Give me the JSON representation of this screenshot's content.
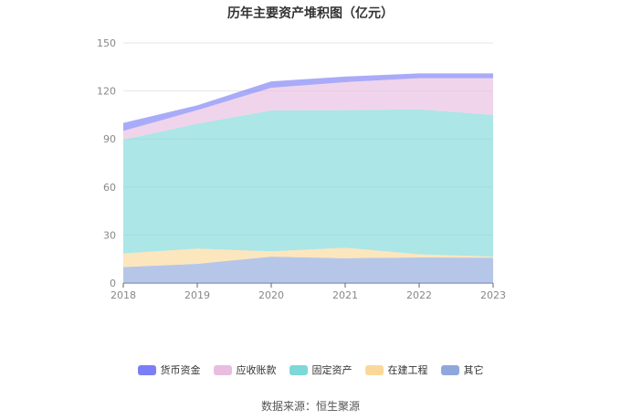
{
  "source_text": "数据来源：恒生聚源",
  "chart_data": {
    "type": "area",
    "stacked": true,
    "title": "历年主要资产堆积图（亿元）",
    "categories": [
      "2018",
      "2019",
      "2020",
      "2021",
      "2022",
      "2023"
    ],
    "ylim": [
      0,
      150
    ],
    "yticks": [
      0,
      30,
      60,
      90,
      120,
      150
    ],
    "grid": true,
    "legend_position": "bottom",
    "series": [
      {
        "name": "其它",
        "color": "#8fa8dc",
        "values": [
          10,
          12,
          16.5,
          15.5,
          16,
          15.8
        ]
      },
      {
        "name": "在建工程",
        "color": "#fbd89a",
        "values": [
          8.5,
          9.5,
          3.3,
          6.5,
          2,
          0.7
        ]
      },
      {
        "name": "固定资产",
        "color": "#7fd8d8",
        "values": [
          71,
          78,
          88,
          86,
          90.5,
          88.5
        ]
      },
      {
        "name": "应收账款",
        "color": "#e8bde0",
        "values": [
          5.5,
          8.5,
          14.2,
          17.5,
          19.5,
          23
        ]
      },
      {
        "name": "货币资金",
        "color": "#7b7ef5",
        "values": [
          5,
          3,
          4,
          3.5,
          3,
          3
        ]
      }
    ],
    "legend_order": [
      "货币资金",
      "应收账款",
      "固定资产",
      "在建工程",
      "其它"
    ]
  }
}
